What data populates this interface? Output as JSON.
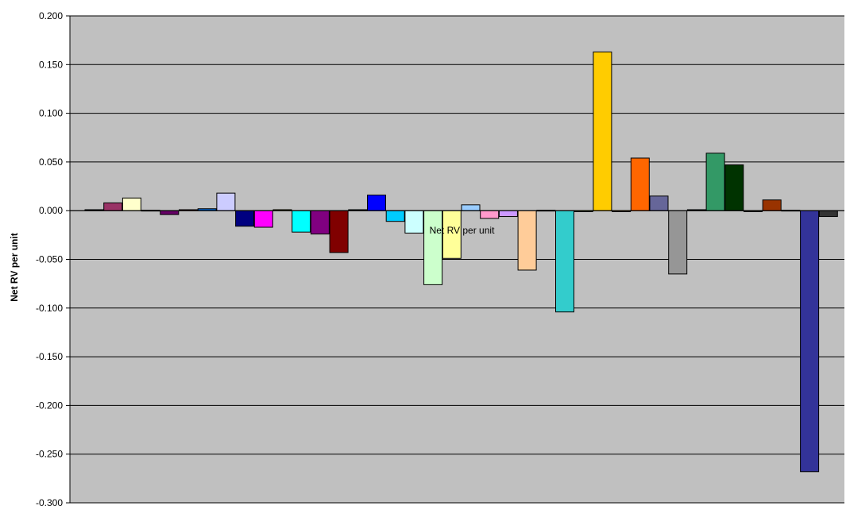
{
  "chart_data": {
    "type": "bar",
    "ylabel": "Net RV per unit",
    "center_label": "Net RV per unit",
    "ylim": [
      -0.3,
      0.2
    ],
    "yticks": [
      "0.200",
      "0.150",
      "0.100",
      "0.050",
      "0.000",
      "-0.050",
      "-0.100",
      "-0.150",
      "-0.200",
      "-0.250",
      "-0.300"
    ],
    "grid": true,
    "plot_background": "#C0C0C0",
    "values": [
      0.001,
      0.008,
      0.013,
      0.0,
      -0.004,
      0.001,
      0.002,
      0.018,
      -0.016,
      -0.017,
      0.001,
      -0.022,
      -0.024,
      -0.043,
      0.001,
      0.016,
      -0.011,
      -0.023,
      -0.076,
      -0.049,
      0.006,
      -0.008,
      -0.006,
      -0.061,
      0.0,
      -0.104,
      -0.001,
      0.163,
      -0.001,
      0.054,
      0.015,
      -0.065,
      0.001,
      0.059,
      0.047,
      -0.001,
      0.011,
      0.0,
      -0.268,
      -0.006
    ],
    "colors": [
      "#003366",
      "#993366",
      "#FFFFCC",
      "#CCFFFF",
      "#660066",
      "#FF8080",
      "#0066CC",
      "#CCCCFF",
      "#000080",
      "#FF00FF",
      "#FFFF00",
      "#00FFFF",
      "#800080",
      "#800000",
      "#008080",
      "#0000FF",
      "#00CCFF",
      "#CCFFFF",
      "#CCFFCC",
      "#FFFF99",
      "#99CCFF",
      "#FF99CC",
      "#CC99FF",
      "#FFCC99",
      "#3366FF",
      "#33CCCC",
      "#99CC00",
      "#FFCC00",
      "#FF9900",
      "#FF6600",
      "#666699",
      "#969696",
      "#003366",
      "#339966",
      "#003300",
      "#333300",
      "#993300",
      "#993366",
      "#333399",
      "#333333"
    ]
  }
}
